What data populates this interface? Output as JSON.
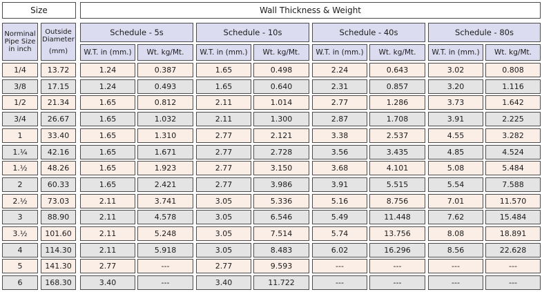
{
  "header": {
    "size_label": "Size",
    "wall_label": "Wall Thickness & Weight",
    "nps_label": "Norminal Pipe Size in inch",
    "od_label": "Outside Diameter",
    "od_unit": "(mm)",
    "schedules": [
      "Schedule - 5s",
      "Schedule - 10s",
      "Schedule - 40s",
      "Schedule - 80s"
    ],
    "wt_label": "W.T. in (mm.)",
    "weight_label": "Wt. kg/Mt."
  },
  "rows": [
    {
      "nps": "1/4",
      "od": "13.72",
      "s5_wt": "1.24",
      "s5_kg": "0.387",
      "s10_wt": "1.65",
      "s10_kg": "0.498",
      "s40_wt": "2.24",
      "s40_kg": "0.643",
      "s80_wt": "3.02",
      "s80_kg": "0.808"
    },
    {
      "nps": "3/8",
      "od": "17.15",
      "s5_wt": "1.24",
      "s5_kg": "0.493",
      "s10_wt": "1.65",
      "s10_kg": "0.640",
      "s40_wt": "2.31",
      "s40_kg": "0.857",
      "s80_wt": "3.20",
      "s80_kg": "1.116"
    },
    {
      "nps": "1/2",
      "od": "21.34",
      "s5_wt": "1.65",
      "s5_kg": "0.812",
      "s10_wt": "2.11",
      "s10_kg": "1.014",
      "s40_wt": "2.77",
      "s40_kg": "1.286",
      "s80_wt": "3.73",
      "s80_kg": "1.642"
    },
    {
      "nps": "3/4",
      "od": "26.67",
      "s5_wt": "1.65",
      "s5_kg": "1.032",
      "s10_wt": "2.11",
      "s10_kg": "1.300",
      "s40_wt": "2.87",
      "s40_kg": "1.708",
      "s80_wt": "3.91",
      "s80_kg": "2.225"
    },
    {
      "nps": "1",
      "od": "33.40",
      "s5_wt": "1.65",
      "s5_kg": "1.310",
      "s10_wt": "2.77",
      "s10_kg": "2.121",
      "s40_wt": "3.38",
      "s40_kg": "2.537",
      "s80_wt": "4.55",
      "s80_kg": "3.282"
    },
    {
      "nps": "1.¼",
      "od": "42.16",
      "s5_wt": "1.65",
      "s5_kg": "1.671",
      "s10_wt": "2.77",
      "s10_kg": "2.728",
      "s40_wt": "3.56",
      "s40_kg": "3.435",
      "s80_wt": "4.85",
      "s80_kg": "4.524"
    },
    {
      "nps": "1.½",
      "od": "48.26",
      "s5_wt": "1.65",
      "s5_kg": "1.923",
      "s10_wt": "2.77",
      "s10_kg": "3.150",
      "s40_wt": "3.68",
      "s40_kg": "4.101",
      "s80_wt": "5.08",
      "s80_kg": "5.484"
    },
    {
      "nps": "2",
      "od": "60.33",
      "s5_wt": "1.65",
      "s5_kg": "2.421",
      "s10_wt": "2.77",
      "s10_kg": "3.986",
      "s40_wt": "3.91",
      "s40_kg": "5.515",
      "s80_wt": "5.54",
      "s80_kg": "7.588"
    },
    {
      "nps": "2.½",
      "od": "73.03",
      "s5_wt": "2.11",
      "s5_kg": "3.741",
      "s10_wt": "3.05",
      "s10_kg": "5.336",
      "s40_wt": "5.16",
      "s40_kg": "8.756",
      "s80_wt": "7.01",
      "s80_kg": "11.570"
    },
    {
      "nps": "3",
      "od": "88.90",
      "s5_wt": "2.11",
      "s5_kg": "4.578",
      "s10_wt": "3.05",
      "s10_kg": "6.546",
      "s40_wt": "5.49",
      "s40_kg": "11.448",
      "s80_wt": "7.62",
      "s80_kg": "15.484"
    },
    {
      "nps": "3.½",
      "od": "101.60",
      "s5_wt": "2.11",
      "s5_kg": "5.248",
      "s10_wt": "3.05",
      "s10_kg": "7.514",
      "s40_wt": "5.74",
      "s40_kg": "13.756",
      "s80_wt": "8.08",
      "s80_kg": "18.891"
    },
    {
      "nps": "4",
      "od": "114.30",
      "s5_wt": "2.11",
      "s5_kg": "5.918",
      "s10_wt": "3.05",
      "s10_kg": "8.483",
      "s40_wt": "6.02",
      "s40_kg": "16.296",
      "s80_wt": "8.56",
      "s80_kg": "22.628"
    },
    {
      "nps": "5",
      "od": "141.30",
      "s5_wt": "2.77",
      "s5_kg": "---",
      "s10_wt": "2.77",
      "s10_kg": "9.593",
      "s40_wt": "---",
      "s40_kg": "---",
      "s80_wt": "---",
      "s80_kg": "---"
    },
    {
      "nps": "6",
      "od": "168.30",
      "s5_wt": "3.40",
      "s5_kg": "---",
      "s10_wt": "3.40",
      "s10_kg": "11.722",
      "s40_wt": "---",
      "s40_kg": "---",
      "s80_wt": "---",
      "s80_kg": "---"
    }
  ]
}
